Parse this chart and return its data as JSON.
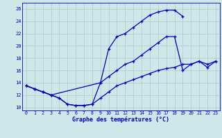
{
  "title": "Graphe des températures (°C)",
  "bg_color": "#cce8e8",
  "line_color": "#0000bb",
  "grid_color": "#aacccc",
  "xlim": [
    -0.5,
    23.5
  ],
  "ylim": [
    9.5,
    27
  ],
  "xticks": [
    0,
    1,
    2,
    3,
    4,
    5,
    6,
    7,
    8,
    9,
    10,
    11,
    12,
    13,
    14,
    15,
    16,
    17,
    18,
    19,
    20,
    21,
    22,
    23
  ],
  "yticks": [
    10,
    12,
    14,
    16,
    18,
    20,
    22,
    24,
    26
  ],
  "series": [
    {
      "x": [
        0,
        1,
        2,
        3,
        4,
        5,
        6,
        7,
        8,
        9,
        10,
        11,
        12,
        13,
        14,
        15,
        16,
        17,
        18,
        19
      ],
      "y": [
        13.5,
        13.0,
        12.5,
        12.0,
        11.5,
        10.5,
        10.3,
        10.3,
        10.5,
        14.0,
        19.5,
        21.5,
        22.0,
        23.0,
        24.0,
        25.0,
        25.5,
        25.8,
        25.8,
        24.8
      ]
    },
    {
      "x": [
        0,
        1,
        2,
        3,
        9,
        10,
        11,
        12,
        13,
        14,
        15,
        16,
        17,
        18,
        19,
        20,
        21,
        22,
        23
      ],
      "y": [
        13.5,
        13.0,
        12.5,
        12.0,
        14.0,
        15.0,
        16.0,
        17.0,
        17.5,
        18.5,
        19.5,
        20.5,
        21.5,
        21.5,
        16.0,
        17.0,
        17.5,
        16.5,
        17.5
      ]
    },
    {
      "x": [
        0,
        1,
        2,
        3,
        4,
        5,
        6,
        7,
        8,
        9,
        10,
        11,
        12,
        13,
        14,
        15,
        16,
        17,
        18,
        19,
        20,
        21,
        22,
        23
      ],
      "y": [
        13.5,
        13.0,
        12.5,
        12.0,
        11.5,
        10.5,
        10.3,
        10.3,
        10.5,
        11.5,
        12.5,
        13.5,
        14.0,
        14.5,
        15.0,
        15.5,
        16.0,
        16.3,
        16.5,
        17.0,
        17.0,
        17.5,
        17.0,
        17.5
      ]
    }
  ]
}
